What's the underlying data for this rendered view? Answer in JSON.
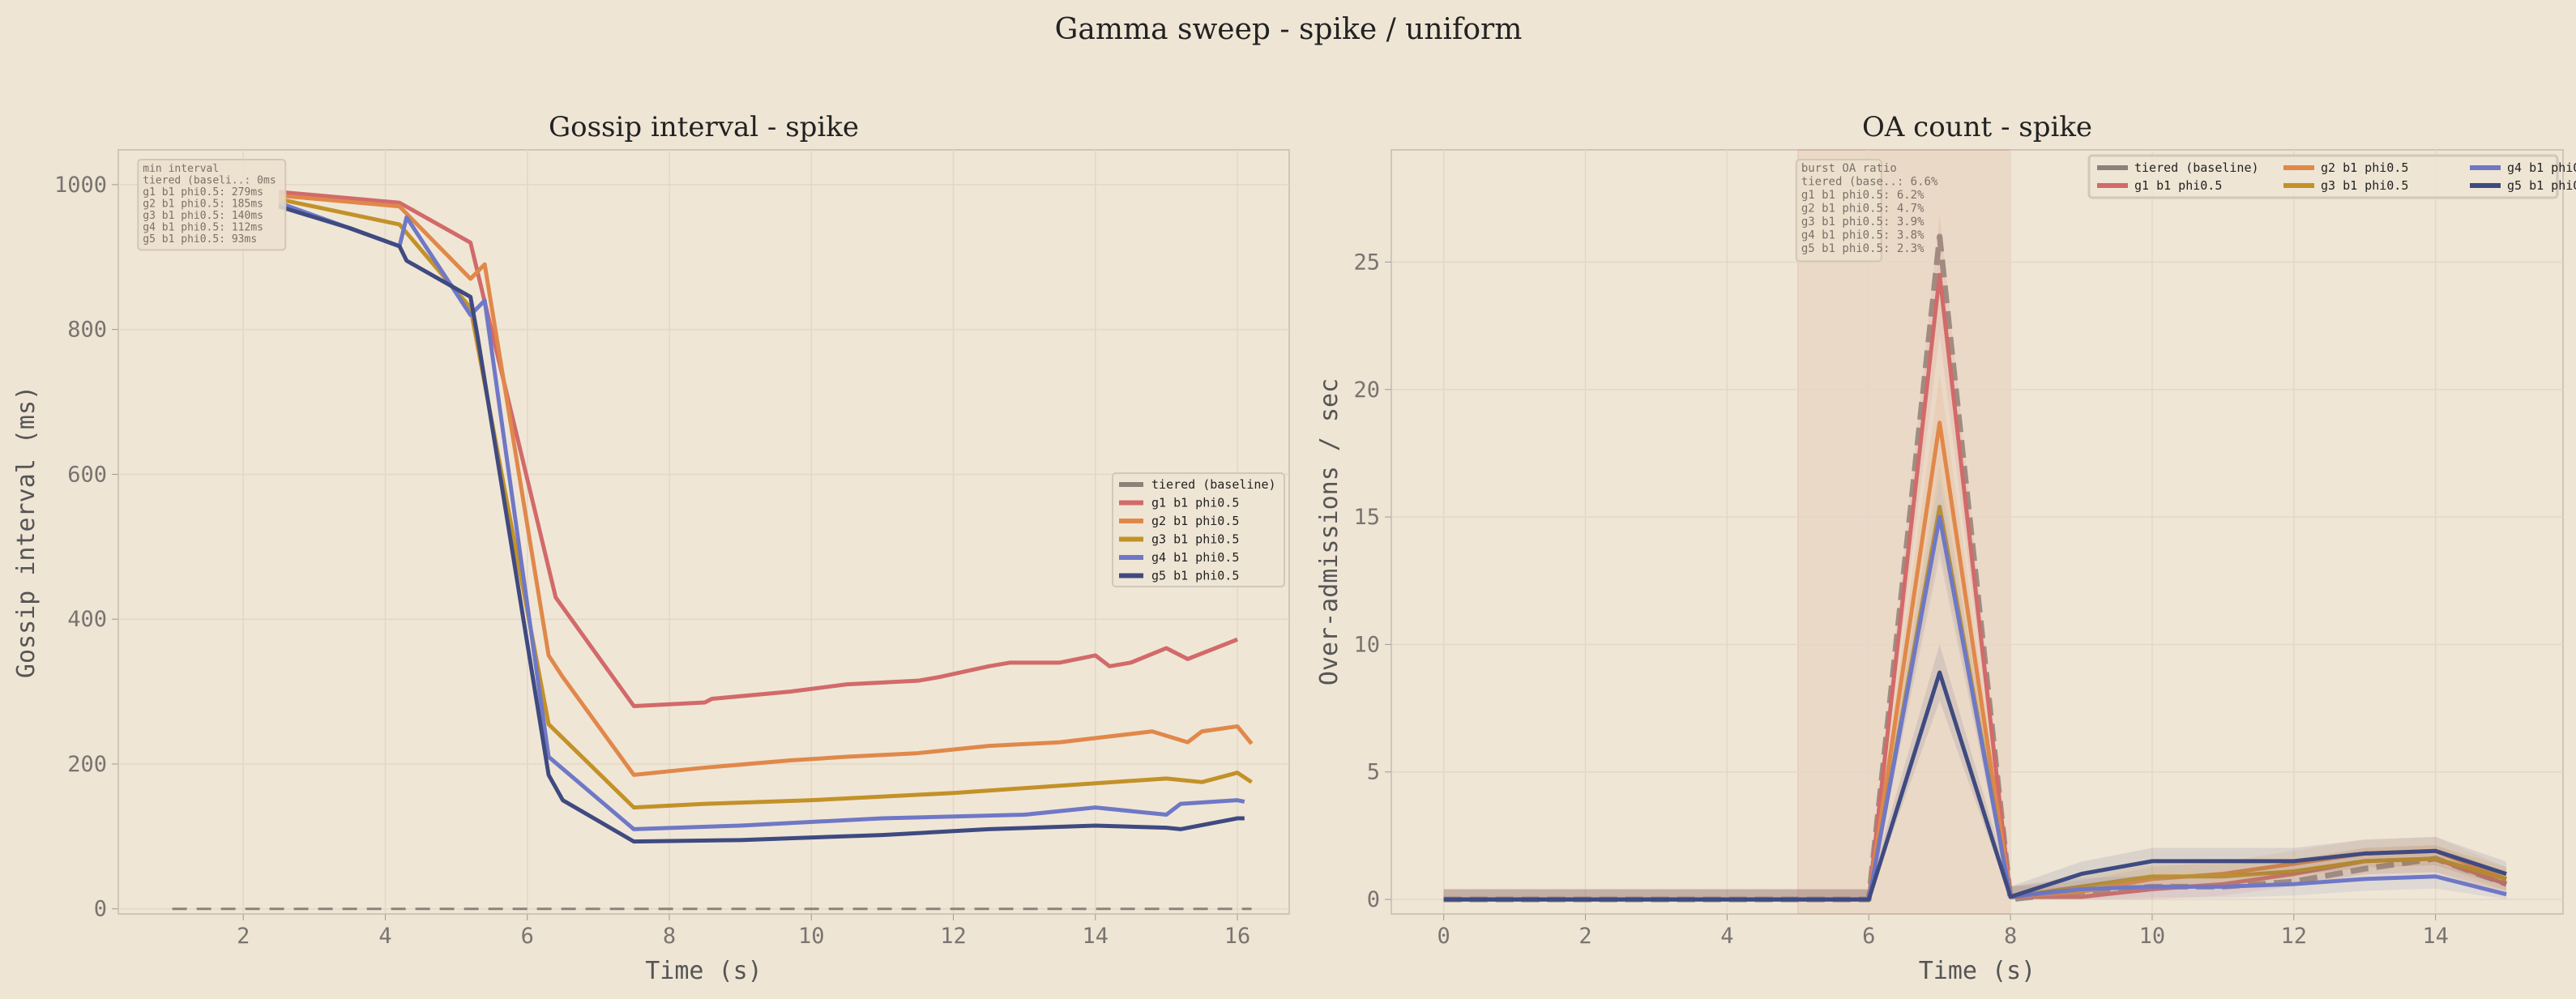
{
  "suptitle": "Gamma sweep - spike / uniform",
  "colors": {
    "tiered (baseline)": "#8c8279",
    "g1 b1 phi0.5": "#d26a6a",
    "g2 b1 phi0.5": "#e0884a",
    "g3 b1 phi0.5": "#c29228",
    "g4 b1 phi0.5": "#6f78c6",
    "g5 b1 phi0.5": "#3f4a80"
  },
  "chart_data": [
    {
      "type": "line",
      "title": "Gossip interval - spike",
      "xlabel": "Time (s)",
      "ylabel": "Gossip interval (ms)",
      "xlim": [
        0.24,
        16.73
      ],
      "ylim": [
        -7,
        1048
      ],
      "xticks": [
        2,
        4,
        6,
        8,
        10,
        12,
        14,
        16
      ],
      "yticks": [
        0,
        200,
        400,
        600,
        800,
        1000
      ],
      "grid": true,
      "legend": "center-right",
      "annotation": [
        "min interval",
        "tiered (baseli..: 0ms",
        "g1 b1 phi0.5: 279ms",
        "g2 b1 phi0.5: 185ms",
        "g3 b1 phi0.5: 140ms",
        "g4 b1 phi0.5: 112ms",
        "g5 b1 phi0.5: 93ms"
      ],
      "series": [
        {
          "name": "tiered (baseline)",
          "dashed": true,
          "x": [
            1,
            16.2
          ],
          "y": [
            0,
            0
          ]
        },
        {
          "name": "g1 b1 phi0.5",
          "x": [
            2.5,
            4.2,
            5.2,
            6.4,
            7.5,
            8.5,
            8.6,
            9.7,
            10.5,
            11.5,
            11.8,
            12.5,
            12.8,
            13.5,
            14,
            14.2,
            14.5,
            15,
            15.3,
            16
          ],
          "y": [
            990,
            975,
            920,
            430,
            280,
            285,
            290,
            300,
            310,
            315,
            320,
            335,
            340,
            340,
            350,
            335,
            340,
            360,
            345,
            372
          ]
        },
        {
          "name": "g2 b1 phi0.5",
          "x": [
            2.5,
            4.2,
            5.2,
            5.4,
            6.3,
            6.5,
            7.5,
            8.5,
            9.7,
            10.5,
            11.5,
            12.5,
            13.5,
            14.8,
            15.3,
            15.5,
            16,
            16.2
          ],
          "y": [
            985,
            970,
            870,
            890,
            350,
            320,
            185,
            195,
            205,
            210,
            215,
            225,
            230,
            245,
            230,
            245,
            252,
            228
          ]
        },
        {
          "name": "g3 b1 phi0.5",
          "x": [
            2.5,
            4.2,
            5.2,
            6.3,
            7.5,
            8.5,
            10,
            12,
            13.5,
            15,
            15.5,
            16,
            16.2
          ],
          "y": [
            980,
            945,
            830,
            255,
            140,
            145,
            150,
            160,
            170,
            180,
            175,
            188,
            175
          ]
        },
        {
          "name": "g4 b1 phi0.5",
          "x": [
            2.5,
            4.2,
            4.3,
            5.2,
            5.4,
            6.3,
            7.5,
            9,
            11,
            13,
            14,
            15,
            15.2,
            16,
            16.1
          ],
          "y": [
            975,
            915,
            955,
            820,
            840,
            210,
            110,
            115,
            125,
            130,
            140,
            130,
            145,
            150,
            148
          ]
        },
        {
          "name": "g5 b1 phi0.5",
          "x": [
            2.5,
            3.5,
            4.2,
            4.3,
            5.2,
            5.3,
            6.3,
            6.5,
            7.5,
            9,
            11,
            12.5,
            14,
            15,
            15.2,
            16,
            16.1
          ],
          "y": [
            970,
            940,
            915,
            895,
            845,
            790,
            185,
            150,
            93,
            95,
            102,
            110,
            115,
            112,
            110,
            125,
            125
          ]
        }
      ]
    },
    {
      "type": "line",
      "title": "OA count - spike",
      "xlabel": "Time (s)",
      "ylabel": "Over-admissions / sec",
      "xlim": [
        -0.74,
        15.8
      ],
      "ylim": [
        -0.57,
        29.4
      ],
      "xticks": [
        0,
        2,
        4,
        6,
        8,
        10,
        12,
        14
      ],
      "yticks": [
        0,
        5,
        10,
        15,
        20,
        25
      ],
      "grid": true,
      "shaded_span": [
        5,
        8
      ],
      "legend": "top-right",
      "annotation": [
        "burst OA ratio",
        "tiered (base..: 6.6%",
        "g1 b1 phi0.5: 6.2%",
        "g2 b1 phi0.5: 4.7%",
        "g3 b1 phi0.5: 3.9%",
        "g4 b1 phi0.5: 3.8%",
        "g5 b1 phi0.5: 2.3%"
      ],
      "x": [
        0,
        1,
        2,
        3,
        4,
        5,
        6,
        7,
        8,
        9,
        10,
        11,
        12,
        13,
        14,
        15
      ],
      "series": [
        {
          "name": "tiered (baseline)",
          "dashed": true,
          "y": [
            0,
            0,
            0,
            0,
            0,
            0,
            0,
            26,
            0,
            0.3,
            0.5,
            0.5,
            0.7,
            1.2,
            1.6,
            0.6
          ]
        },
        {
          "name": "g1 b1 phi0.5",
          "y": [
            0,
            0,
            0,
            0,
            0,
            0,
            0,
            24.5,
            0.1,
            0.1,
            0.4,
            0.6,
            1.0,
            1.5,
            1.6,
            0.6
          ]
        },
        {
          "name": "g2 b1 phi0.5",
          "y": [
            0,
            0,
            0,
            0,
            0,
            0,
            0,
            18.7,
            0.1,
            0.3,
            0.8,
            1.0,
            1.4,
            1.8,
            1.9,
            0.8
          ]
        },
        {
          "name": "g3 b1 phi0.5",
          "y": [
            0,
            0,
            0,
            0,
            0,
            0,
            0,
            15.4,
            0.1,
            0.5,
            0.9,
            0.9,
            1.1,
            1.5,
            1.6,
            0.8
          ]
        },
        {
          "name": "g4 b1 phi0.5",
          "y": [
            0,
            0,
            0,
            0,
            0,
            0,
            0,
            15.0,
            0.1,
            0.4,
            0.5,
            0.5,
            0.6,
            0.8,
            0.9,
            0.2
          ]
        },
        {
          "name": "g5 b1 phi0.5",
          "y": [
            0,
            0,
            0,
            0,
            0,
            0,
            0,
            8.9,
            0.1,
            1.0,
            1.5,
            1.5,
            1.5,
            1.8,
            1.9,
            1.0
          ]
        }
      ]
    }
  ]
}
